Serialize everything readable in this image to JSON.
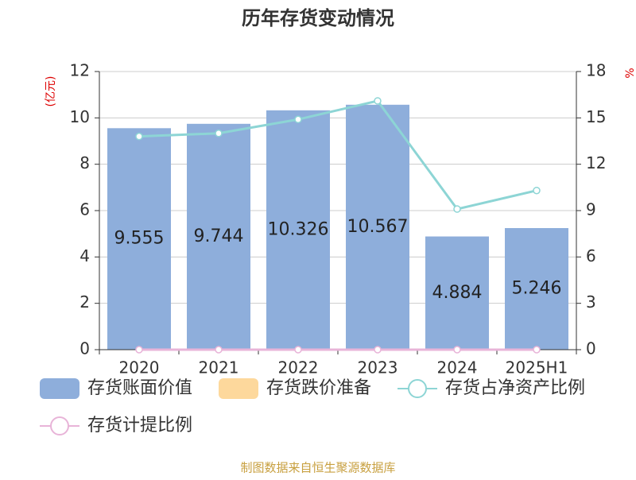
{
  "chart_data": {
    "type": "bar",
    "title": "历年存货变动情况",
    "y_label": "(亿元)",
    "y2_label": "%",
    "categories": [
      "2020",
      "2021",
      "2022",
      "2023",
      "2024",
      "2025H1"
    ],
    "series": [
      {
        "name": "存货账面价值",
        "type": "bar",
        "color": "#8eaedb",
        "values": [
          9.555,
          9.744,
          10.326,
          10.567,
          4.884,
          5.246
        ]
      },
      {
        "name": "存货跌价准备",
        "type": "bar",
        "color": "#fdd89c",
        "values": [
          0,
          0,
          0,
          0,
          0,
          0
        ]
      },
      {
        "name": "存货占净资产比例",
        "type": "line",
        "axis": "y2",
        "color": "#8dd5d5",
        "values": [
          13.8,
          14.0,
          14.9,
          16.1,
          9.1,
          10.3
        ]
      },
      {
        "name": "存货计提比例",
        "type": "line",
        "axis": "y2",
        "color": "#e8b4d8",
        "values": [
          0,
          0,
          0,
          0,
          0,
          0
        ]
      }
    ],
    "ylim": [
      0,
      12
    ],
    "yticks": [
      0,
      2,
      4,
      6,
      8,
      10,
      12
    ],
    "y2lim": [
      0,
      18
    ],
    "y2ticks": [
      0,
      3,
      6,
      9,
      12,
      15,
      18
    ],
    "grid": true,
    "source": "制图数据来自恒生聚源数据库"
  }
}
